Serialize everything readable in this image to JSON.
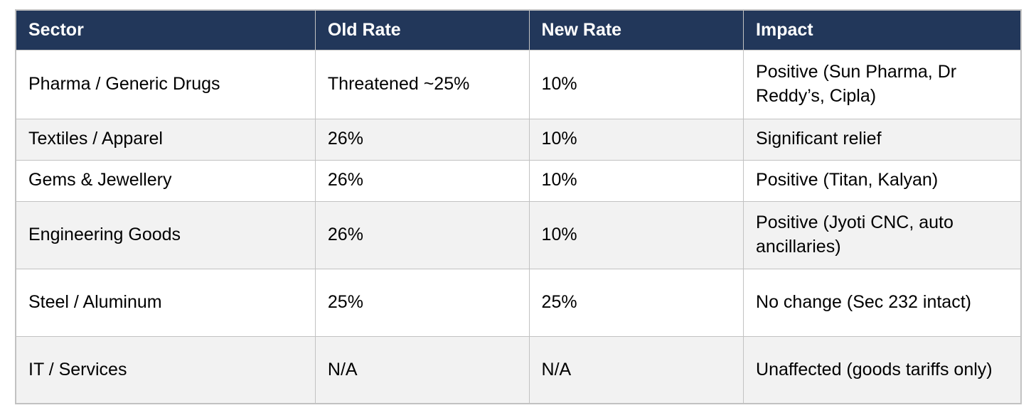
{
  "table": {
    "columns": [
      {
        "key": "sector",
        "label": "Sector"
      },
      {
        "key": "old_rate",
        "label": "Old Rate"
      },
      {
        "key": "new_rate",
        "label": "New Rate"
      },
      {
        "key": "impact",
        "label": "Impact"
      }
    ],
    "rows": [
      {
        "sector": "Pharma / Generic Drugs",
        "old_rate": "Threatened ~25%",
        "new_rate": "10%",
        "impact": "Positive (Sun Pharma, Dr Reddy’s, Cipla)"
      },
      {
        "sector": "Textiles / Apparel",
        "old_rate": "26%",
        "new_rate": "10%",
        "impact": "Significant relief"
      },
      {
        "sector": "Gems & Jewellery",
        "old_rate": "26%",
        "new_rate": "10%",
        "impact": "Positive (Titan, Kalyan)"
      },
      {
        "sector": "Engineering Goods",
        "old_rate": "26%",
        "new_rate": "10%",
        "impact": "Positive (Jyoti CNC, auto ancillaries)"
      },
      {
        "sector": "Steel / Aluminum",
        "old_rate": "25%",
        "new_rate": "25%",
        "impact": "No change (Sec 232 intact)"
      },
      {
        "sector": "IT / Services",
        "old_rate": "N/A",
        "new_rate": "N/A",
        "impact": "Unaffected (goods tariffs only)"
      }
    ]
  },
  "colors": {
    "header_bg": "#22375a",
    "header_text": "#ffffff",
    "row_bg": "#ffffff",
    "row_alt_bg": "#f2f2f2",
    "border": "#c2c2c2",
    "body_text": "#000000"
  }
}
